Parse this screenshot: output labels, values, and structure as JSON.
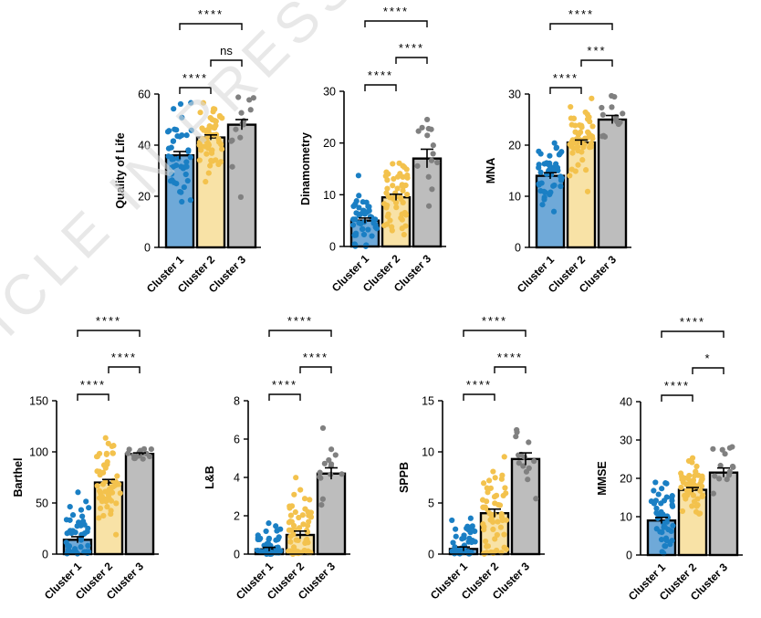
{
  "watermark": "ARTICLE IN PRESS",
  "colors": {
    "cluster1": "#1a7fc4",
    "cluster1_bar": "#6fa9d8",
    "cluster2": "#f3c24d",
    "cluster2_bar": "#f8e2a6",
    "cluster3": "#808080",
    "cluster3_bar": "#bdbdbd",
    "axis": "#000000"
  },
  "chart_data": [
    {
      "type": "bar",
      "ylabel": "Quality of Life",
      "categories": [
        "Cluster 1",
        "Cluster 2",
        "Cluster 3"
      ],
      "values": [
        36,
        43,
        48
      ],
      "errors": [
        1.5,
        1.0,
        2.0
      ],
      "ylim": [
        0,
        60
      ],
      "yticks": [
        "0",
        "20",
        "40",
        "60"
      ],
      "comparisons": [
        {
          "from": 0,
          "to": 1,
          "label": "****"
        },
        {
          "from": 1,
          "to": 2,
          "label": "ns"
        },
        {
          "from": 0,
          "to": 2,
          "label": "****"
        }
      ]
    },
    {
      "type": "bar",
      "ylabel": "Dinamometry",
      "categories": [
        "Cluster 1",
        "Cluster 2",
        "Cluster 3"
      ],
      "values": [
        5,
        9.5,
        17
      ],
      "errors": [
        0.5,
        0.6,
        1.8
      ],
      "ylim": [
        0,
        30
      ],
      "yticks": [
        "0",
        "10",
        "20",
        "30"
      ],
      "comparisons": [
        {
          "from": 0,
          "to": 1,
          "label": "****"
        },
        {
          "from": 1,
          "to": 2,
          "label": "****"
        },
        {
          "from": 0,
          "to": 2,
          "label": "****"
        }
      ]
    },
    {
      "type": "bar",
      "ylabel": "MNA",
      "categories": [
        "Cluster 1",
        "Cluster 2",
        "Cluster 3"
      ],
      "values": [
        14,
        20.5,
        25
      ],
      "errors": [
        0.6,
        0.5,
        0.8
      ],
      "ylim": [
        0,
        30
      ],
      "yticks": [
        "0",
        "10",
        "20",
        "30"
      ],
      "comparisons": [
        {
          "from": 0,
          "to": 1,
          "label": "****"
        },
        {
          "from": 1,
          "to": 2,
          "label": "***"
        },
        {
          "from": 0,
          "to": 2,
          "label": "****"
        }
      ]
    },
    {
      "type": "bar",
      "ylabel": "Barthel",
      "categories": [
        "Cluster 1",
        "Cluster 2",
        "Cluster 3"
      ],
      "values": [
        14,
        70,
        98
      ],
      "errors": [
        3,
        3,
        1
      ],
      "ylim": [
        0,
        150
      ],
      "yticks": [
        "0",
        "50",
        "100",
        "150"
      ],
      "comparisons": [
        {
          "from": 0,
          "to": 1,
          "label": "****"
        },
        {
          "from": 1,
          "to": 2,
          "label": "****"
        },
        {
          "from": 0,
          "to": 2,
          "label": "****"
        }
      ]
    },
    {
      "type": "bar",
      "ylabel": "L&B",
      "categories": [
        "Cluster 1",
        "Cluster 2",
        "Cluster 3"
      ],
      "values": [
        0.25,
        1.0,
        4.2
      ],
      "errors": [
        0.1,
        0.2,
        0.3
      ],
      "ylim": [
        0,
        8
      ],
      "yticks": [
        "0",
        "2",
        "4",
        "6",
        "8"
      ],
      "comparisons": [
        {
          "from": 0,
          "to": 1,
          "label": "****"
        },
        {
          "from": 1,
          "to": 2,
          "label": "****"
        },
        {
          "from": 0,
          "to": 2,
          "label": "****"
        }
      ]
    },
    {
      "type": "bar",
      "ylabel": "SPPB",
      "categories": [
        "Cluster 1",
        "Cluster 2",
        "Cluster 3"
      ],
      "values": [
        0.5,
        4,
        9.3
      ],
      "errors": [
        0.2,
        0.4,
        0.6
      ],
      "ylim": [
        0,
        15
      ],
      "yticks": [
        "0",
        "5",
        "10",
        "15"
      ],
      "comparisons": [
        {
          "from": 0,
          "to": 1,
          "label": "****"
        },
        {
          "from": 1,
          "to": 2,
          "label": "****"
        },
        {
          "from": 0,
          "to": 2,
          "label": "****"
        }
      ]
    },
    {
      "type": "bar",
      "ylabel": "MMSE",
      "categories": [
        "Cluster 1",
        "Cluster 2",
        "Cluster 3"
      ],
      "values": [
        9,
        17,
        21.5
      ],
      "errors": [
        0.8,
        0.6,
        1.2
      ],
      "ylim": [
        0,
        40
      ],
      "yticks": [
        "0",
        "10",
        "20",
        "30",
        "40"
      ],
      "comparisons": [
        {
          "from": 0,
          "to": 1,
          "label": "****"
        },
        {
          "from": 1,
          "to": 2,
          "label": "*"
        },
        {
          "from": 0,
          "to": 2,
          "label": "****"
        }
      ]
    }
  ]
}
